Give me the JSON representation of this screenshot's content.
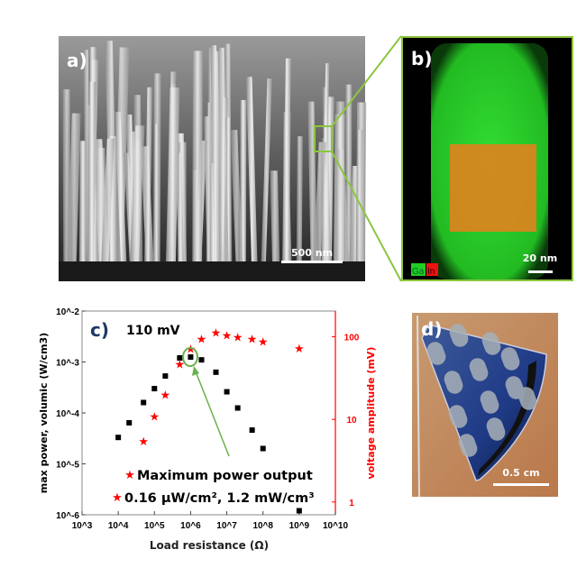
{
  "panels": {
    "a": {
      "label": "a)",
      "scale_bar": "500 nm"
    },
    "b": {
      "label": "b)",
      "scale_bar": "20 nm",
      "legend": [
        {
          "text": "Ga",
          "color": "#22cc22"
        },
        {
          "text": "In",
          "color": "#ee1111"
        }
      ]
    },
    "c": {
      "label": "c)",
      "annotation": "110 mV",
      "legend_line1": "Maximum power output",
      "legend_line2": "0.16 µW/cm², 1.2 mW/cm³"
    },
    "d": {
      "label": "d)",
      "scale_bar": "0.5 cm"
    }
  },
  "chart_data": {
    "type": "scatter",
    "xlabel": "Load resistance (Ω)",
    "ylabel": "max power, volumic (W/cm3)",
    "y2label": "voltage amplitude (mV)",
    "xscale": "log",
    "yscale": "log",
    "y2scale": "log",
    "xlim": [
      1000,
      10000000000
    ],
    "ylim": [
      1e-06,
      0.01
    ],
    "y2lim": [
      0.7,
      205
    ],
    "x_ticks": [
      "10^3",
      "10^4",
      "10^5",
      "10^6",
      "10^7",
      "10^8",
      "10^9",
      "10^10"
    ],
    "y_ticks": [
      "10^-6",
      "10^-5",
      "10^-4",
      "10^-3",
      "10^-2"
    ],
    "y2_ticks": [
      "1",
      "10",
      "100"
    ],
    "series": [
      {
        "axis": "left",
        "marker": "square",
        "color": "#000000",
        "x": [
          10000,
          20000,
          50000,
          100000,
          200000,
          500000,
          1000000,
          2000000,
          5000000,
          10000000,
          20000000,
          50000000,
          100000000,
          1000000000
        ],
        "y": [
          3.3e-05,
          6.4e-05,
          0.00016,
          0.0003,
          0.00053,
          0.0012,
          0.00125,
          0.0011,
          0.00063,
          0.00026,
          0.000125,
          4.6e-05,
          2e-05,
          1.2e-06
        ]
      },
      {
        "axis": "right",
        "marker": "star",
        "color": "#ff0000",
        "x": [
          50000,
          100000,
          200000,
          500000,
          1000000,
          2000000,
          5000000,
          10000000,
          20000000,
          50000000,
          100000000,
          1000000000
        ],
        "y": [
          5.5,
          11,
          20,
          47,
          72,
          95,
          114,
          105,
          100,
          95,
          88,
          73
        ]
      }
    ],
    "highlight": {
      "x": 1000000,
      "y": 0.00125,
      "color": "#6ab04c"
    },
    "grid": false,
    "legend_placement": "bottom"
  },
  "colors": {
    "accent_green": "#8cc63f",
    "axis_red": "#ff0000",
    "label_navy": "#1f3864"
  }
}
